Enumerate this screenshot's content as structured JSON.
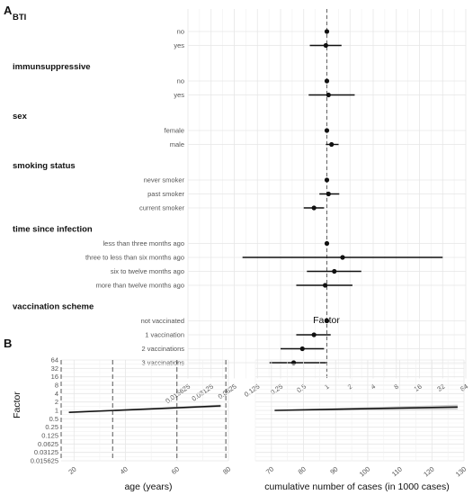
{
  "panels": {
    "a_label": "A",
    "b_label": "B"
  },
  "chart_data": [
    {
      "type": "forest",
      "panel": "A",
      "x_scale": "log2",
      "xlim": [
        0.015625,
        64
      ],
      "xticks": [
        "0.015625",
        "0.03125",
        "0.0625",
        "0.125",
        "0.25",
        "0.5",
        "1",
        "2",
        "4",
        "8",
        "16",
        "32",
        "64"
      ],
      "xtick_values": [
        0.015625,
        0.03125,
        0.0625,
        0.125,
        0.25,
        0.5,
        1,
        2,
        4,
        8,
        16,
        32,
        64
      ],
      "xlabel": "Factor",
      "reference_line": 1,
      "groups": [
        {
          "name": "BTI",
          "rows": [
            {
              "level": "no",
              "estimate": 1.0,
              "lower": 1.0,
              "upper": 1.0
            },
            {
              "level": "yes",
              "estimate": 0.97,
              "lower": 0.6,
              "upper": 1.55
            }
          ]
        },
        {
          "name": "immunsuppressive",
          "rows": [
            {
              "level": "no",
              "estimate": 1.0,
              "lower": 1.0,
              "upper": 1.0
            },
            {
              "level": "yes",
              "estimate": 1.05,
              "lower": 0.58,
              "upper": 2.3
            }
          ]
        },
        {
          "name": "sex",
          "rows": [
            {
              "level": "female",
              "estimate": 1.0,
              "lower": 1.0,
              "upper": 1.0
            },
            {
              "level": "male",
              "estimate": 1.15,
              "lower": 0.97,
              "upper": 1.42
            }
          ]
        },
        {
          "name": "smoking status",
          "rows": [
            {
              "level": "never smoker",
              "estimate": 1.0,
              "lower": 1.0,
              "upper": 1.0
            },
            {
              "level": "past smoker",
              "estimate": 1.05,
              "lower": 0.8,
              "upper": 1.45
            },
            {
              "level": "current smoker",
              "estimate": 0.68,
              "lower": 0.5,
              "upper": 0.92
            }
          ]
        },
        {
          "name": "time since infection",
          "rows": [
            {
              "level": "less than three months ago",
              "estimate": 1.0,
              "lower": 1.0,
              "upper": 1.0
            },
            {
              "level": "three to less than six months ago",
              "estimate": 1.6,
              "lower": 0.08,
              "upper": 32
            },
            {
              "level": "six to twelve months ago",
              "estimate": 1.25,
              "lower": 0.55,
              "upper": 2.8
            },
            {
              "level": "more than twelve months ago",
              "estimate": 0.95,
              "lower": 0.4,
              "upper": 2.15
            }
          ]
        },
        {
          "name": "vaccination scheme",
          "rows": [
            {
              "level": "not vaccinated",
              "estimate": 1.0,
              "lower": 1.0,
              "upper": 1.0
            },
            {
              "level": "1 vaccination",
              "estimate": 0.68,
              "lower": 0.4,
              "upper": 1.12
            },
            {
              "level": "2 vaccinations",
              "estimate": 0.48,
              "lower": 0.25,
              "upper": 0.92
            },
            {
              "level": "3 vaccinations",
              "estimate": 0.37,
              "lower": 0.18,
              "upper": 0.98
            }
          ]
        }
      ]
    },
    {
      "type": "line",
      "panel": "B-left",
      "xlabel": "age (years)",
      "ylabel": "Factor",
      "y_scale": "log2",
      "ylim": [
        0.015625,
        64
      ],
      "yticks": [
        "64",
        "32",
        "16",
        "8",
        "4",
        "2",
        "1",
        "0.5",
        "0.25",
        "0.125",
        "0.0625",
        "0.03125",
        "0.015625"
      ],
      "ytick_values": [
        64,
        32,
        16,
        8,
        4,
        2,
        1,
        0.5,
        0.25,
        0.125,
        0.0625,
        0.03125,
        0.015625
      ],
      "xlim": [
        15,
        80
      ],
      "xticks": [
        "20",
        "40",
        "60",
        "80"
      ],
      "xtick_values": [
        20,
        40,
        60,
        80
      ],
      "vlines": [
        15,
        35,
        60,
        79
      ],
      "series": [
        {
          "x": [
            18,
            77
          ],
          "y": [
            0.85,
            1.45
          ],
          "lower": [
            0.82,
            1.28
          ],
          "upper": [
            0.88,
            1.62
          ]
        }
      ]
    },
    {
      "type": "line",
      "panel": "B-right",
      "xlabel": "cumulative number of cases (in 1000 cases)",
      "xlim": [
        65,
        130
      ],
      "xticks": [
        "70",
        "80",
        "90",
        "100",
        "110",
        "120",
        "130"
      ],
      "xtick_values": [
        70,
        80,
        90,
        100,
        110,
        120,
        130
      ],
      "series": [
        {
          "x": [
            71,
            128
          ],
          "y": [
            1.0,
            1.32
          ],
          "lower": [
            0.96,
            1.08
          ],
          "upper": [
            1.04,
            1.6
          ]
        }
      ]
    }
  ]
}
